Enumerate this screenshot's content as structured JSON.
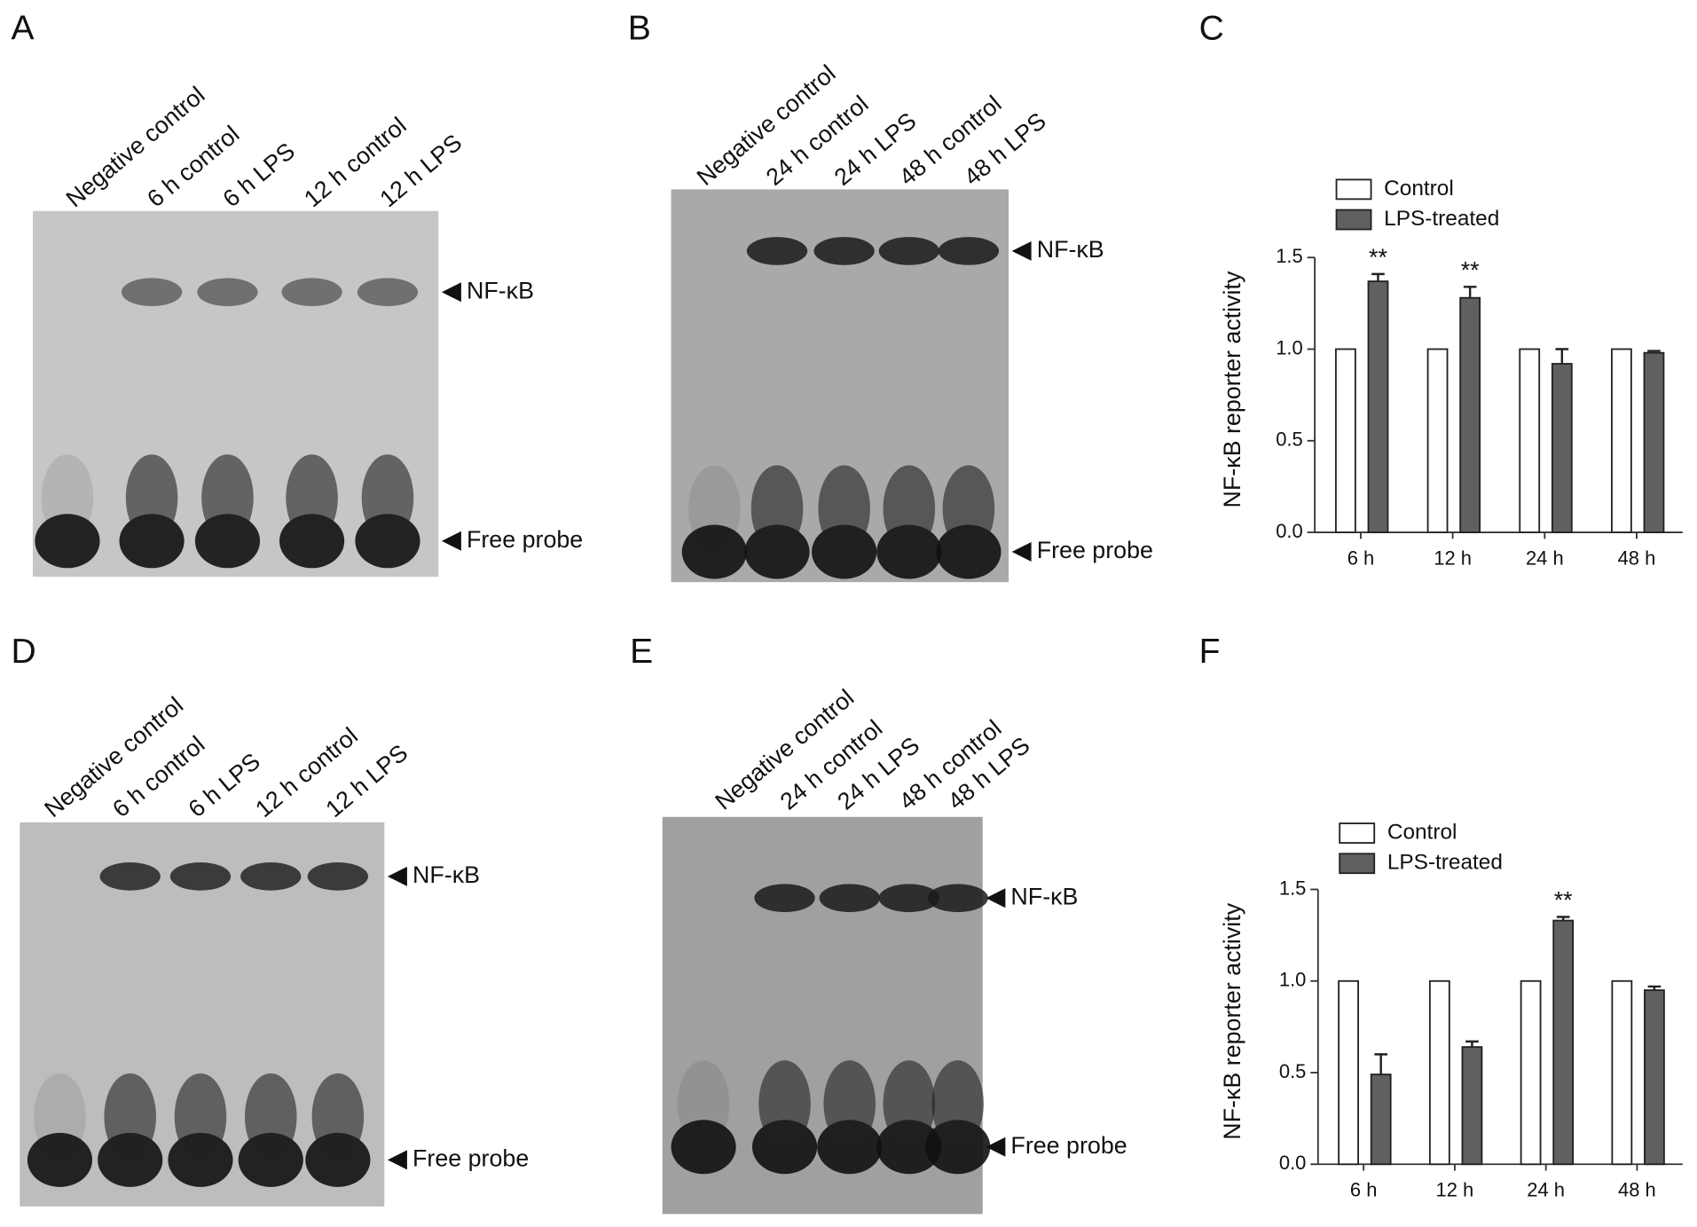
{
  "gels": [
    {
      "panel": "A",
      "lanes": [
        "Negative control",
        "6 h control",
        "6 h LPS",
        "12 h control",
        "12 h LPS"
      ],
      "band_label": "NF-κB",
      "probe_label": "Free probe"
    },
    {
      "panel": "B",
      "lanes": [
        "Negative control",
        "24 h control",
        "24 h LPS",
        "48 h control",
        "48 h LPS"
      ],
      "band_label": "NF-κB",
      "probe_label": "Free probe"
    },
    {
      "panel": "D",
      "lanes": [
        "Negative control",
        "6 h control",
        "6 h LPS",
        "12 h control",
        "12 h LPS"
      ],
      "band_label": "NF-κB",
      "probe_label": "Free probe"
    },
    {
      "panel": "E",
      "lanes": [
        "Negative control",
        "24 h control",
        "24 h LPS",
        "48 h control",
        "48 h LPS"
      ],
      "band_label": "NF-κB",
      "probe_label": "Free probe"
    }
  ],
  "chart_data": [
    {
      "type": "bar",
      "panel": "C",
      "y_label": "NF-κB reporter activity",
      "categories": [
        "6 h",
        "12 h",
        "24 h",
        "48 h"
      ],
      "series": [
        {
          "name": "Control",
          "color": "#ffffff",
          "values": [
            1.0,
            1.0,
            1.0,
            1.0
          ]
        },
        {
          "name": "LPS-treated",
          "color": "#606060",
          "values": [
            1.37,
            1.28,
            0.92,
            0.98
          ],
          "errors": [
            0.04,
            0.06,
            0.08,
            0.01
          ],
          "significance": [
            "**",
            "**",
            null,
            null
          ]
        }
      ],
      "ylim": [
        0,
        1.5
      ],
      "yticks": [
        {
          "value": 0,
          "label": "0.0"
        },
        0.5,
        {
          "value": 1,
          "label": "1.0"
        },
        1.5
      ]
    },
    {
      "type": "bar",
      "panel": "F",
      "y_label": "NF-κB reporter activity",
      "categories": [
        "6 h",
        "12 h",
        "24 h",
        "48 h"
      ],
      "series": [
        {
          "name": "Control",
          "color": "#ffffff",
          "values": [
            1.0,
            1.0,
            1.0,
            1.0
          ]
        },
        {
          "name": "LPS-treated",
          "color": "#606060",
          "values": [
            0.49,
            0.64,
            1.33,
            0.95
          ],
          "errors": [
            0.11,
            0.03,
            0.02,
            0.02
          ],
          "significance": [
            null,
            null,
            "**",
            null
          ]
        }
      ],
      "ylim": [
        0,
        1.5
      ],
      "yticks": [
        {
          "value": 0,
          "label": "0.0"
        },
        0.5,
        {
          "value": 1,
          "label": "1.0"
        },
        1.5
      ]
    }
  ]
}
